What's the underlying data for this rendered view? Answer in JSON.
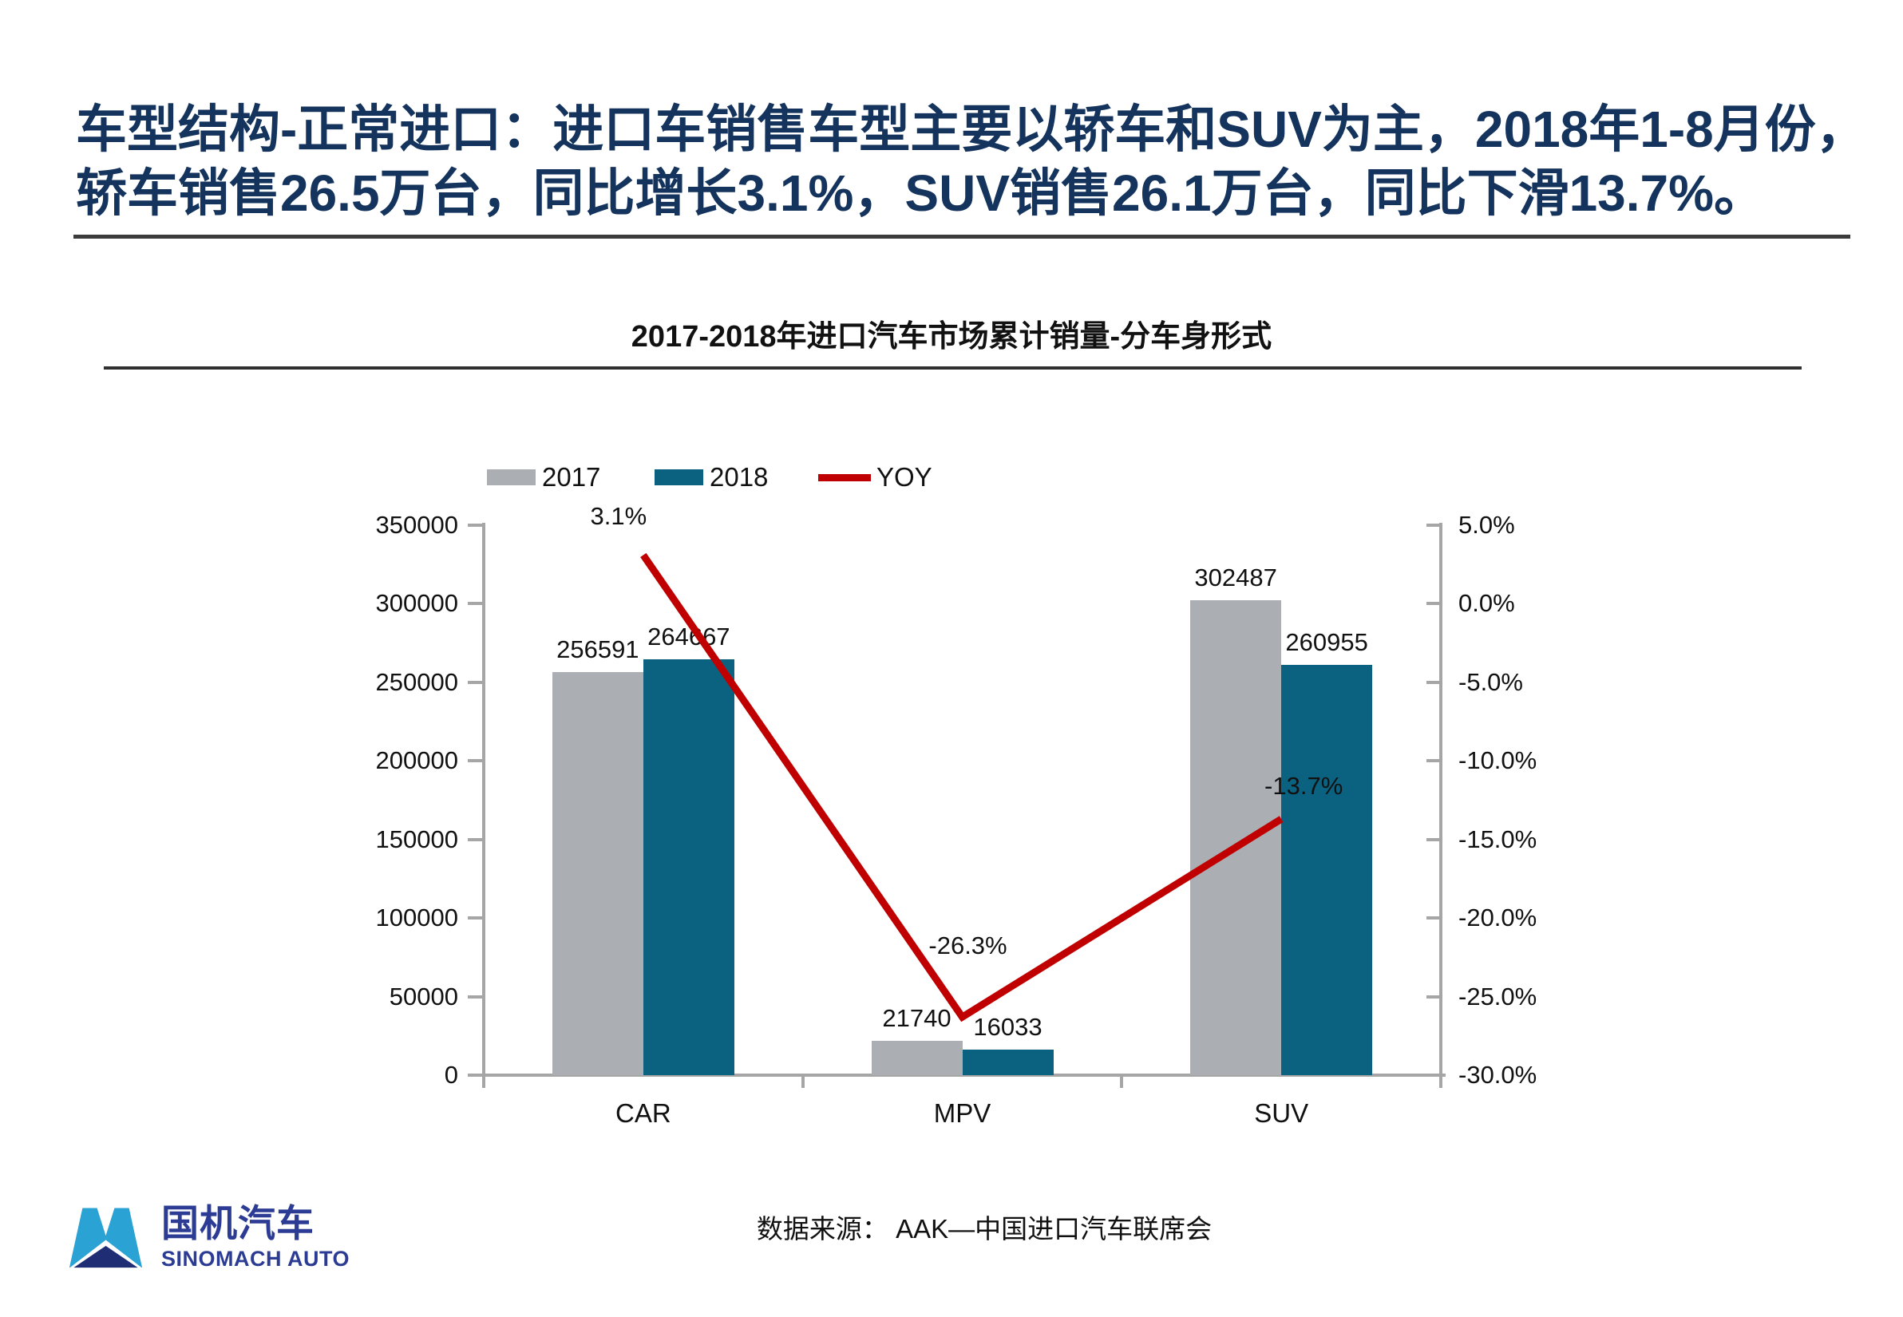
{
  "title": {
    "lines": [
      "车型结构-正常进口：进口车销售车型主要以轿车和SUV为主，2018年1-8月份，",
      "轿车销售26.5万台，同比增长3.1%，SUV销售26.1万台，同比下滑13.7%。"
    ],
    "color": "#14335d"
  },
  "chart_data": {
    "type": "bar",
    "title": "2017-2018年进口汽车市场累计销量-分车身形式",
    "categories": [
      "CAR",
      "MPV",
      "SUV"
    ],
    "series": [
      {
        "name": "2017",
        "type": "bar",
        "axis": "left",
        "color": "#abafb4",
        "values": [
          256591,
          21740,
          302487
        ]
      },
      {
        "name": "2018",
        "type": "bar",
        "axis": "left",
        "color": "#0a6280",
        "values": [
          264667,
          16033,
          260955
        ]
      },
      {
        "name": "YOY",
        "type": "line",
        "axis": "right",
        "color": "#c00000",
        "values_pct": [
          3.1,
          -26.3,
          -13.7
        ],
        "labels": [
          "3.1%",
          "-26.3%",
          "-13.7%"
        ]
      }
    ],
    "left_axis": {
      "min": 0,
      "max": 350000,
      "step": 50000,
      "ticks": [
        "350000",
        "300000",
        "250000",
        "200000",
        "150000",
        "100000",
        "50000",
        "0"
      ]
    },
    "right_axis": {
      "min": -30,
      "max": 5,
      "step": 5,
      "ticks": [
        "5.0%",
        "0.0%",
        "-5.0%",
        "-10.0%",
        "-15.0%",
        "-20.0%",
        "-25.0%",
        "-30.0%"
      ]
    },
    "grid": false,
    "legend_position": "top-left",
    "axis_color": "#a6a6a6"
  },
  "source": "数据来源： AAK—中国进口汽车联席会",
  "logo": {
    "name_cn": "国机汽车",
    "name_en": "SINOMACH AUTO",
    "icon_light_color": "#2aa2d3",
    "icon_dark_color": "#1e2d74",
    "text_color": "#2c3c94"
  }
}
